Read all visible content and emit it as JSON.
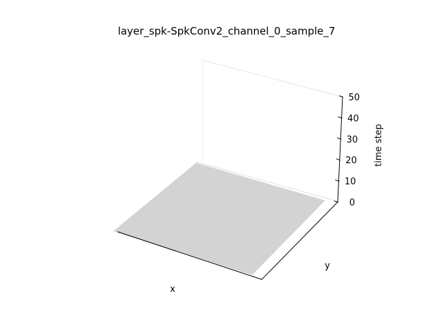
{
  "chart_data": {
    "type": "surface3d",
    "title": "layer_spk-SpkConv2_channel_0_sample_7",
    "xlabel": "x",
    "ylabel": "y",
    "zlabel": "time step",
    "zlim": [
      0,
      50
    ],
    "zticks": [
      "0",
      "10",
      "20",
      "30",
      "40",
      "50"
    ],
    "xticks": [],
    "yticks": [],
    "surface": {
      "z_value": 0,
      "color": "#d3d3d3"
    },
    "grid": false
  }
}
